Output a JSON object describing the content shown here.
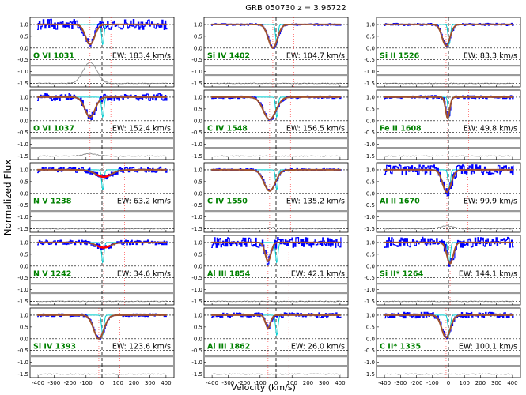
{
  "chart_data": {
    "type": "line",
    "title": "GRB 050730  z = 3.96722",
    "xlabel": "Velocity (km/s)",
    "ylabel": "Normalized Flux",
    "xlim": [
      -450,
      450
    ],
    "ylim": [
      -1.65,
      1.3
    ],
    "x_ticks": [
      -400,
      -300,
      -200,
      -100,
      0,
      100,
      200,
      300,
      400
    ],
    "y_ticks": [
      -1.5,
      -1.0,
      -0.5,
      0.0,
      0.5,
      1.0
    ],
    "grid": false,
    "colors": {
      "data": "#0000ff",
      "model": "#a0522d",
      "component": "#00ced1",
      "highlight": "#ff0000",
      "residual": "#808080",
      "label": "#008000",
      "zero_line": "#000000"
    },
    "panels": [
      {
        "ion": "O VI 1031",
        "ew": "EW: 183.4 km/s",
        "col": 0,
        "row": 0,
        "center": -75,
        "depth": 0.85,
        "width": 40,
        "emission": 0.9,
        "noise": 0.22
      },
      {
        "ion": "O VI 1037",
        "ew": "EW: 152.4 km/s",
        "col": 0,
        "row": 1,
        "center": -75,
        "depth": 0.85,
        "width": 45,
        "emission": 0.1,
        "noise": 0.15
      },
      {
        "ion": "N V 1238",
        "ew": "EW: 63.2 km/s",
        "col": 0,
        "row": 2,
        "center": 10,
        "depth": 0.3,
        "width": 70,
        "emission": 0,
        "noise": 0.12,
        "highlight": true
      },
      {
        "ion": "N V 1242",
        "ew": "EW: 34.6 km/s",
        "col": 0,
        "row": 3,
        "center": 10,
        "depth": 0.22,
        "width": 60,
        "emission": 0,
        "noise": 0.1,
        "highlight": true
      },
      {
        "ion": "Si IV 1393",
        "ew": "EW: 123.6 km/s",
        "col": 0,
        "row": 4,
        "center": -20,
        "depth": 1.0,
        "width": 45,
        "emission": 0,
        "noise": 0.06
      },
      {
        "ion": "Si IV 1402",
        "ew": "EW: 104.7 km/s",
        "col": 1,
        "row": 0,
        "center": -20,
        "depth": 1.0,
        "width": 40,
        "emission": 0,
        "noise": 0.04
      },
      {
        "ion": "C IV 1548",
        "ew": "EW: 156.5 km/s",
        "col": 1,
        "row": 1,
        "center": -40,
        "depth": 0.95,
        "width": 55,
        "emission": 0,
        "noise": 0.06
      },
      {
        "ion": "C IV 1550",
        "ew": "EW: 135.2 km/s",
        "col": 1,
        "row": 2,
        "center": -40,
        "depth": 0.9,
        "width": 50,
        "emission": 0.05,
        "noise": 0.05
      },
      {
        "ion": "Al III 1854",
        "ew": "EW: 42.1 km/s",
        "col": 1,
        "row": 3,
        "center": -50,
        "depth": 0.8,
        "width": 25,
        "emission": 0,
        "noise": 0.22
      },
      {
        "ion": "Al III 1862",
        "ew": "EW: 26.0 km/s",
        "col": 1,
        "row": 4,
        "center": -50,
        "depth": 0.55,
        "width": 22,
        "emission": 0,
        "noise": 0.1
      },
      {
        "ion": "Si II 1526",
        "ew": "EW: 83.3 km/s",
        "col": 2,
        "row": 0,
        "center": -15,
        "depth": 0.9,
        "width": 35,
        "emission": 0,
        "noise": 0.05
      },
      {
        "ion": "Fe II 1608",
        "ew": "EW: 49.8 km/s",
        "col": 2,
        "row": 1,
        "center": -5,
        "depth": 0.9,
        "width": 18,
        "emission": 0,
        "noise": 0.07
      },
      {
        "ion": "Al II 1670",
        "ew": "EW: 99.9 km/s",
        "col": 2,
        "row": 2,
        "center": -10,
        "depth": 0.95,
        "width": 38,
        "emission": 0.12,
        "noise": 0.22
      },
      {
        "ion": "Si II* 1264",
        "ew": "EW: 144.1 km/s",
        "col": 2,
        "row": 3,
        "center": 10,
        "depth": 0.9,
        "width": 28,
        "emission": 0,
        "noise": 0.22
      },
      {
        "ion": "C II* 1335",
        "ew": "EW: 100.1 km/s",
        "col": 2,
        "row": 4,
        "center": -15,
        "depth": 0.95,
        "width": 38,
        "emission": 0,
        "noise": 0.12
      }
    ]
  }
}
